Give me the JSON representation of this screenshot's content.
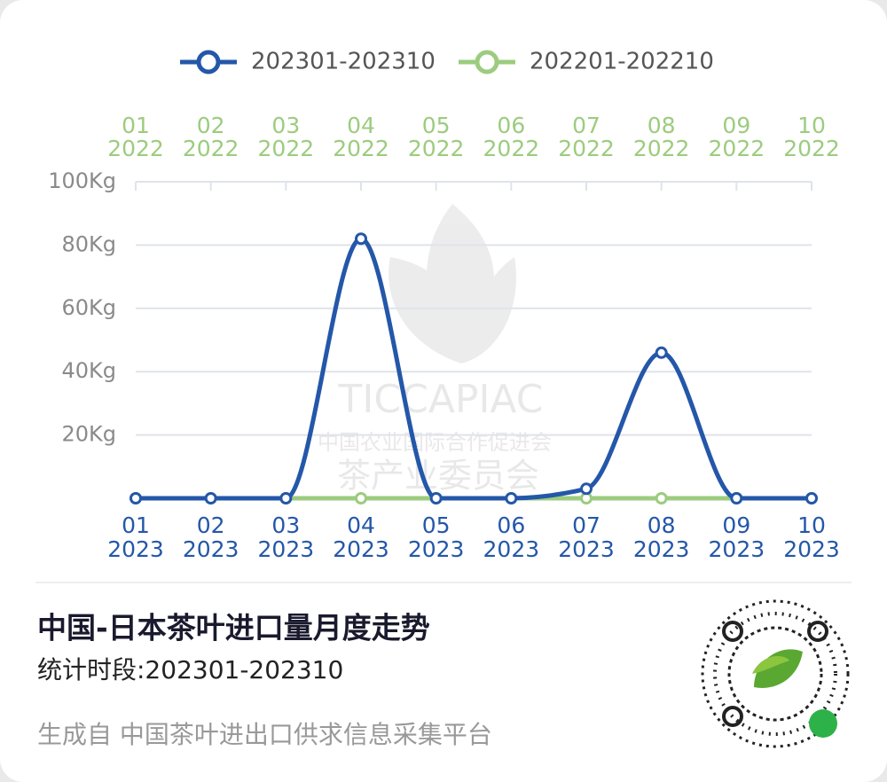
{
  "chart_data": {
    "type": "line",
    "title": "中国-日本茶叶进口量月度走势",
    "subtitle": "统计时段:202301-202310",
    "source": "生成自 中国茶叶进出口供求信息采集平台",
    "watermark": [
      "TICCAPIAC",
      "中国农业国际合作促进会",
      "茶产业委员会"
    ],
    "categories": [
      [
        "01",
        "2023"
      ],
      [
        "02",
        "2023"
      ],
      [
        "03",
        "2023"
      ],
      [
        "04",
        "2023"
      ],
      [
        "05",
        "2023"
      ],
      [
        "06",
        "2023"
      ],
      [
        "07",
        "2023"
      ],
      [
        "08",
        "2023"
      ],
      [
        "09",
        "2023"
      ],
      [
        "10",
        "2023"
      ]
    ],
    "top_categories": [
      [
        "01",
        "2022"
      ],
      [
        "02",
        "2022"
      ],
      [
        "03",
        "2022"
      ],
      [
        "04",
        "2022"
      ],
      [
        "05",
        "2022"
      ],
      [
        "06",
        "2022"
      ],
      [
        "07",
        "2022"
      ],
      [
        "08",
        "2022"
      ],
      [
        "09",
        "2022"
      ],
      [
        "10",
        "2022"
      ]
    ],
    "series": [
      {
        "name": "202301-202310",
        "color": "#2457a9",
        "values": [
          0,
          0,
          0,
          82,
          0,
          0,
          3,
          46,
          0,
          0
        ]
      },
      {
        "name": "202201-202210",
        "color": "#9ccc7f",
        "values": [
          0,
          0,
          0,
          0,
          0,
          0,
          0,
          0,
          0,
          0
        ]
      }
    ],
    "ylim": [
      0,
      100
    ],
    "yticks": [
      {
        "value": 20,
        "label": "20Kg"
      },
      {
        "value": 40,
        "label": "40Kg"
      },
      {
        "value": 60,
        "label": "60Kg"
      },
      {
        "value": 80,
        "label": "80Kg"
      },
      {
        "value": 100,
        "label": "100Kg"
      }
    ],
    "grid": true,
    "smooth": true
  }
}
